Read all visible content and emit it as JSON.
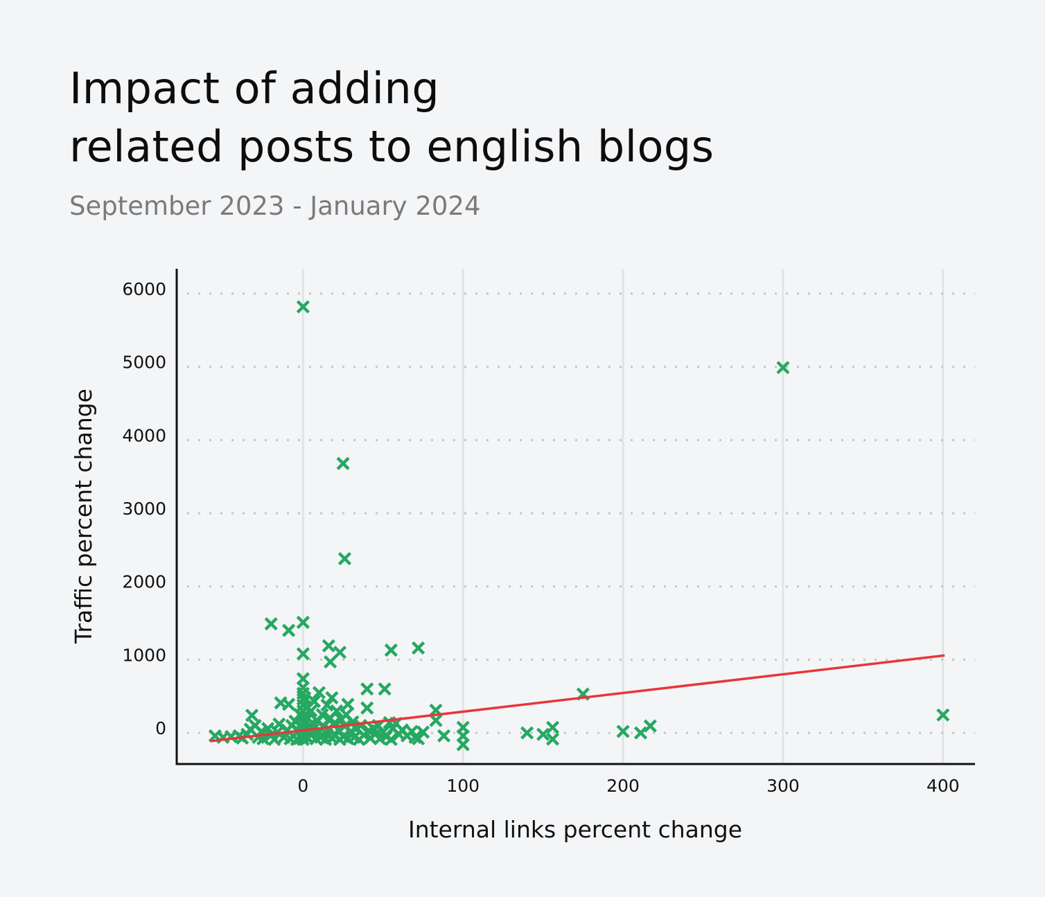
{
  "title_line1": "Impact of adding",
  "title_line2": "related posts to english blogs",
  "subtitle": "September 2023 - January 2024",
  "chart_data": {
    "type": "scatter",
    "title": "Impact of adding related posts to english blogs",
    "subtitle": "September 2023 - January 2024",
    "xlabel": "Internal links percent change",
    "ylabel": "Traffic percent change",
    "xlim": [
      -79,
      420
    ],
    "ylim": [
      -425,
      6340
    ],
    "xticks": [
      0,
      100,
      200,
      300,
      400
    ],
    "yticks": [
      0,
      1000,
      2000,
      3000,
      4000,
      5000,
      6000
    ],
    "grid": {
      "x": "solid",
      "y": "dotted"
    },
    "marker": "x",
    "colors": {
      "points": "#26a862",
      "trendline": "#e8363b",
      "grid": "#e2e3e6",
      "axis": "#111111"
    },
    "trendline": {
      "x": [
        -58,
        401
      ],
      "y": [
        -113,
        1058
      ]
    },
    "points": [
      [
        0,
        5820
      ],
      [
        300,
        4990
      ],
      [
        25,
        3680
      ],
      [
        26,
        2380
      ],
      [
        -20,
        1490
      ],
      [
        -9,
        1400
      ],
      [
        0,
        1510
      ],
      [
        0,
        1080
      ],
      [
        16,
        1190
      ],
      [
        23,
        1100
      ],
      [
        17,
        970
      ],
      [
        55,
        1130
      ],
      [
        72,
        1160
      ],
      [
        40,
        600
      ],
      [
        51,
        600
      ],
      [
        40,
        340
      ],
      [
        83,
        310
      ],
      [
        83,
        170
      ],
      [
        88,
        -40
      ],
      [
        100,
        75
      ],
      [
        100,
        -40
      ],
      [
        100,
        -160
      ],
      [
        140,
        0
      ],
      [
        150,
        -20
      ],
      [
        156,
        75
      ],
      [
        156,
        -85
      ],
      [
        175,
        530
      ],
      [
        200,
        20
      ],
      [
        211,
        0
      ],
      [
        217,
        95
      ],
      [
        400,
        245
      ],
      [
        -55,
        -40
      ],
      [
        -50,
        -60
      ],
      [
        -45,
        -50
      ],
      [
        -40,
        -40
      ],
      [
        -38,
        -70
      ],
      [
        -35,
        -20
      ],
      [
        -33,
        50
      ],
      [
        -32,
        240
      ],
      [
        -30,
        100
      ],
      [
        -28,
        -60
      ],
      [
        -26,
        20
      ],
      [
        -25,
        -80
      ],
      [
        -22,
        60
      ],
      [
        -20,
        -30
      ],
      [
        -18,
        -90
      ],
      [
        -16,
        10
      ],
      [
        -15,
        120
      ],
      [
        -14,
        410
      ],
      [
        -12,
        -60
      ],
      [
        -10,
        40
      ],
      [
        -9,
        390
      ],
      [
        -8,
        -80
      ],
      [
        -7,
        100
      ],
      [
        -6,
        -40
      ],
      [
        -5,
        160
      ],
      [
        -4,
        -90
      ],
      [
        -3,
        30
      ],
      [
        -2,
        250
      ],
      [
        -1,
        -60
      ],
      [
        0,
        740
      ],
      [
        0,
        620
      ],
      [
        0,
        540
      ],
      [
        0,
        460
      ],
      [
        0,
        380
      ],
      [
        0,
        300
      ],
      [
        0,
        220
      ],
      [
        0,
        150
      ],
      [
        0,
        80
      ],
      [
        0,
        20
      ],
      [
        0,
        -50
      ],
      [
        0,
        -90
      ],
      [
        1,
        480
      ],
      [
        2,
        350
      ],
      [
        3,
        200
      ],
      [
        3,
        -70
      ],
      [
        4,
        100
      ],
      [
        5,
        300
      ],
      [
        5,
        -30
      ],
      [
        6,
        40
      ],
      [
        7,
        430
      ],
      [
        8,
        -80
      ],
      [
        9,
        160
      ],
      [
        10,
        550
      ],
      [
        10,
        20
      ],
      [
        11,
        -60
      ],
      [
        12,
        250
      ],
      [
        13,
        90
      ],
      [
        14,
        -90
      ],
      [
        15,
        380
      ],
      [
        15,
        -20
      ],
      [
        16,
        60
      ],
      [
        17,
        200
      ],
      [
        18,
        480
      ],
      [
        18,
        -70
      ],
      [
        19,
        120
      ],
      [
        20,
        -40
      ],
      [
        21,
        300
      ],
      [
        22,
        40
      ],
      [
        23,
        -90
      ],
      [
        24,
        180
      ],
      [
        25,
        -50
      ],
      [
        26,
        90
      ],
      [
        27,
        250
      ],
      [
        28,
        390
      ],
      [
        28,
        -80
      ],
      [
        30,
        20
      ],
      [
        31,
        150
      ],
      [
        32,
        -60
      ],
      [
        33,
        60
      ],
      [
        35,
        -90
      ],
      [
        36,
        100
      ],
      [
        38,
        -30
      ],
      [
        41,
        30
      ],
      [
        42,
        -70
      ],
      [
        44,
        60
      ],
      [
        45,
        -20
      ],
      [
        47,
        100
      ],
      [
        48,
        -80
      ],
      [
        50,
        10
      ],
      [
        52,
        -50
      ],
      [
        54,
        140
      ],
      [
        55,
        -90
      ],
      [
        56,
        60
      ],
      [
        58,
        130
      ],
      [
        60,
        -20
      ],
      [
        62,
        40
      ],
      [
        65,
        -40
      ],
      [
        68,
        20
      ],
      [
        70,
        -60
      ],
      [
        72,
        -80
      ],
      [
        75,
        10
      ]
    ]
  }
}
